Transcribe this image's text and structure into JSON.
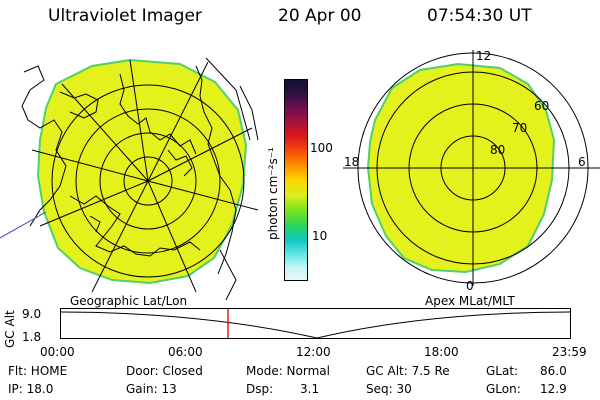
{
  "header": {
    "title": "Ultraviolet Imager",
    "date": "20 Apr 00",
    "time": "07:54:30 UT"
  },
  "colorbar": {
    "unit_label": "photon cm⁻²s⁻¹",
    "tick_high": "100",
    "tick_low": "10"
  },
  "polar_plot": {
    "label_top": "12",
    "label_left": "18",
    "label_right": "6",
    "label_bottom": "0",
    "ring_60": "60",
    "ring_70": "70",
    "ring_80": "80"
  },
  "plot_titles": {
    "geographic": "Geographic Lat/Lon",
    "apex": "Apex MLat/MLT"
  },
  "timeline": {
    "axis_label": "GC Alt",
    "y_top": "9.0",
    "y_bottom": "1.8",
    "x_ticks": [
      "00:00",
      "06:00",
      "12:00",
      "18:00",
      "23:59"
    ],
    "current_time_marker": "07:54:30"
  },
  "info": {
    "flt": "Flt: HOME",
    "ip": "IP: 18.0",
    "door": "Door: Closed",
    "gain": "Gain: 13",
    "mode": "Mode: Normal",
    "dsp_label": "Dsp:",
    "dsp_value": "3.1",
    "gc_alt": "GC Alt: 7.5 Re",
    "seq": "Seq: 30",
    "glat_label": "GLat:",
    "glat_value": "86.0",
    "glon_label": "GLon:",
    "glon_value": "12.9"
  },
  "colors": {
    "image_fill": "#e5f11c",
    "image_edge": "#4fd06a",
    "cursor": "#e0201c"
  }
}
